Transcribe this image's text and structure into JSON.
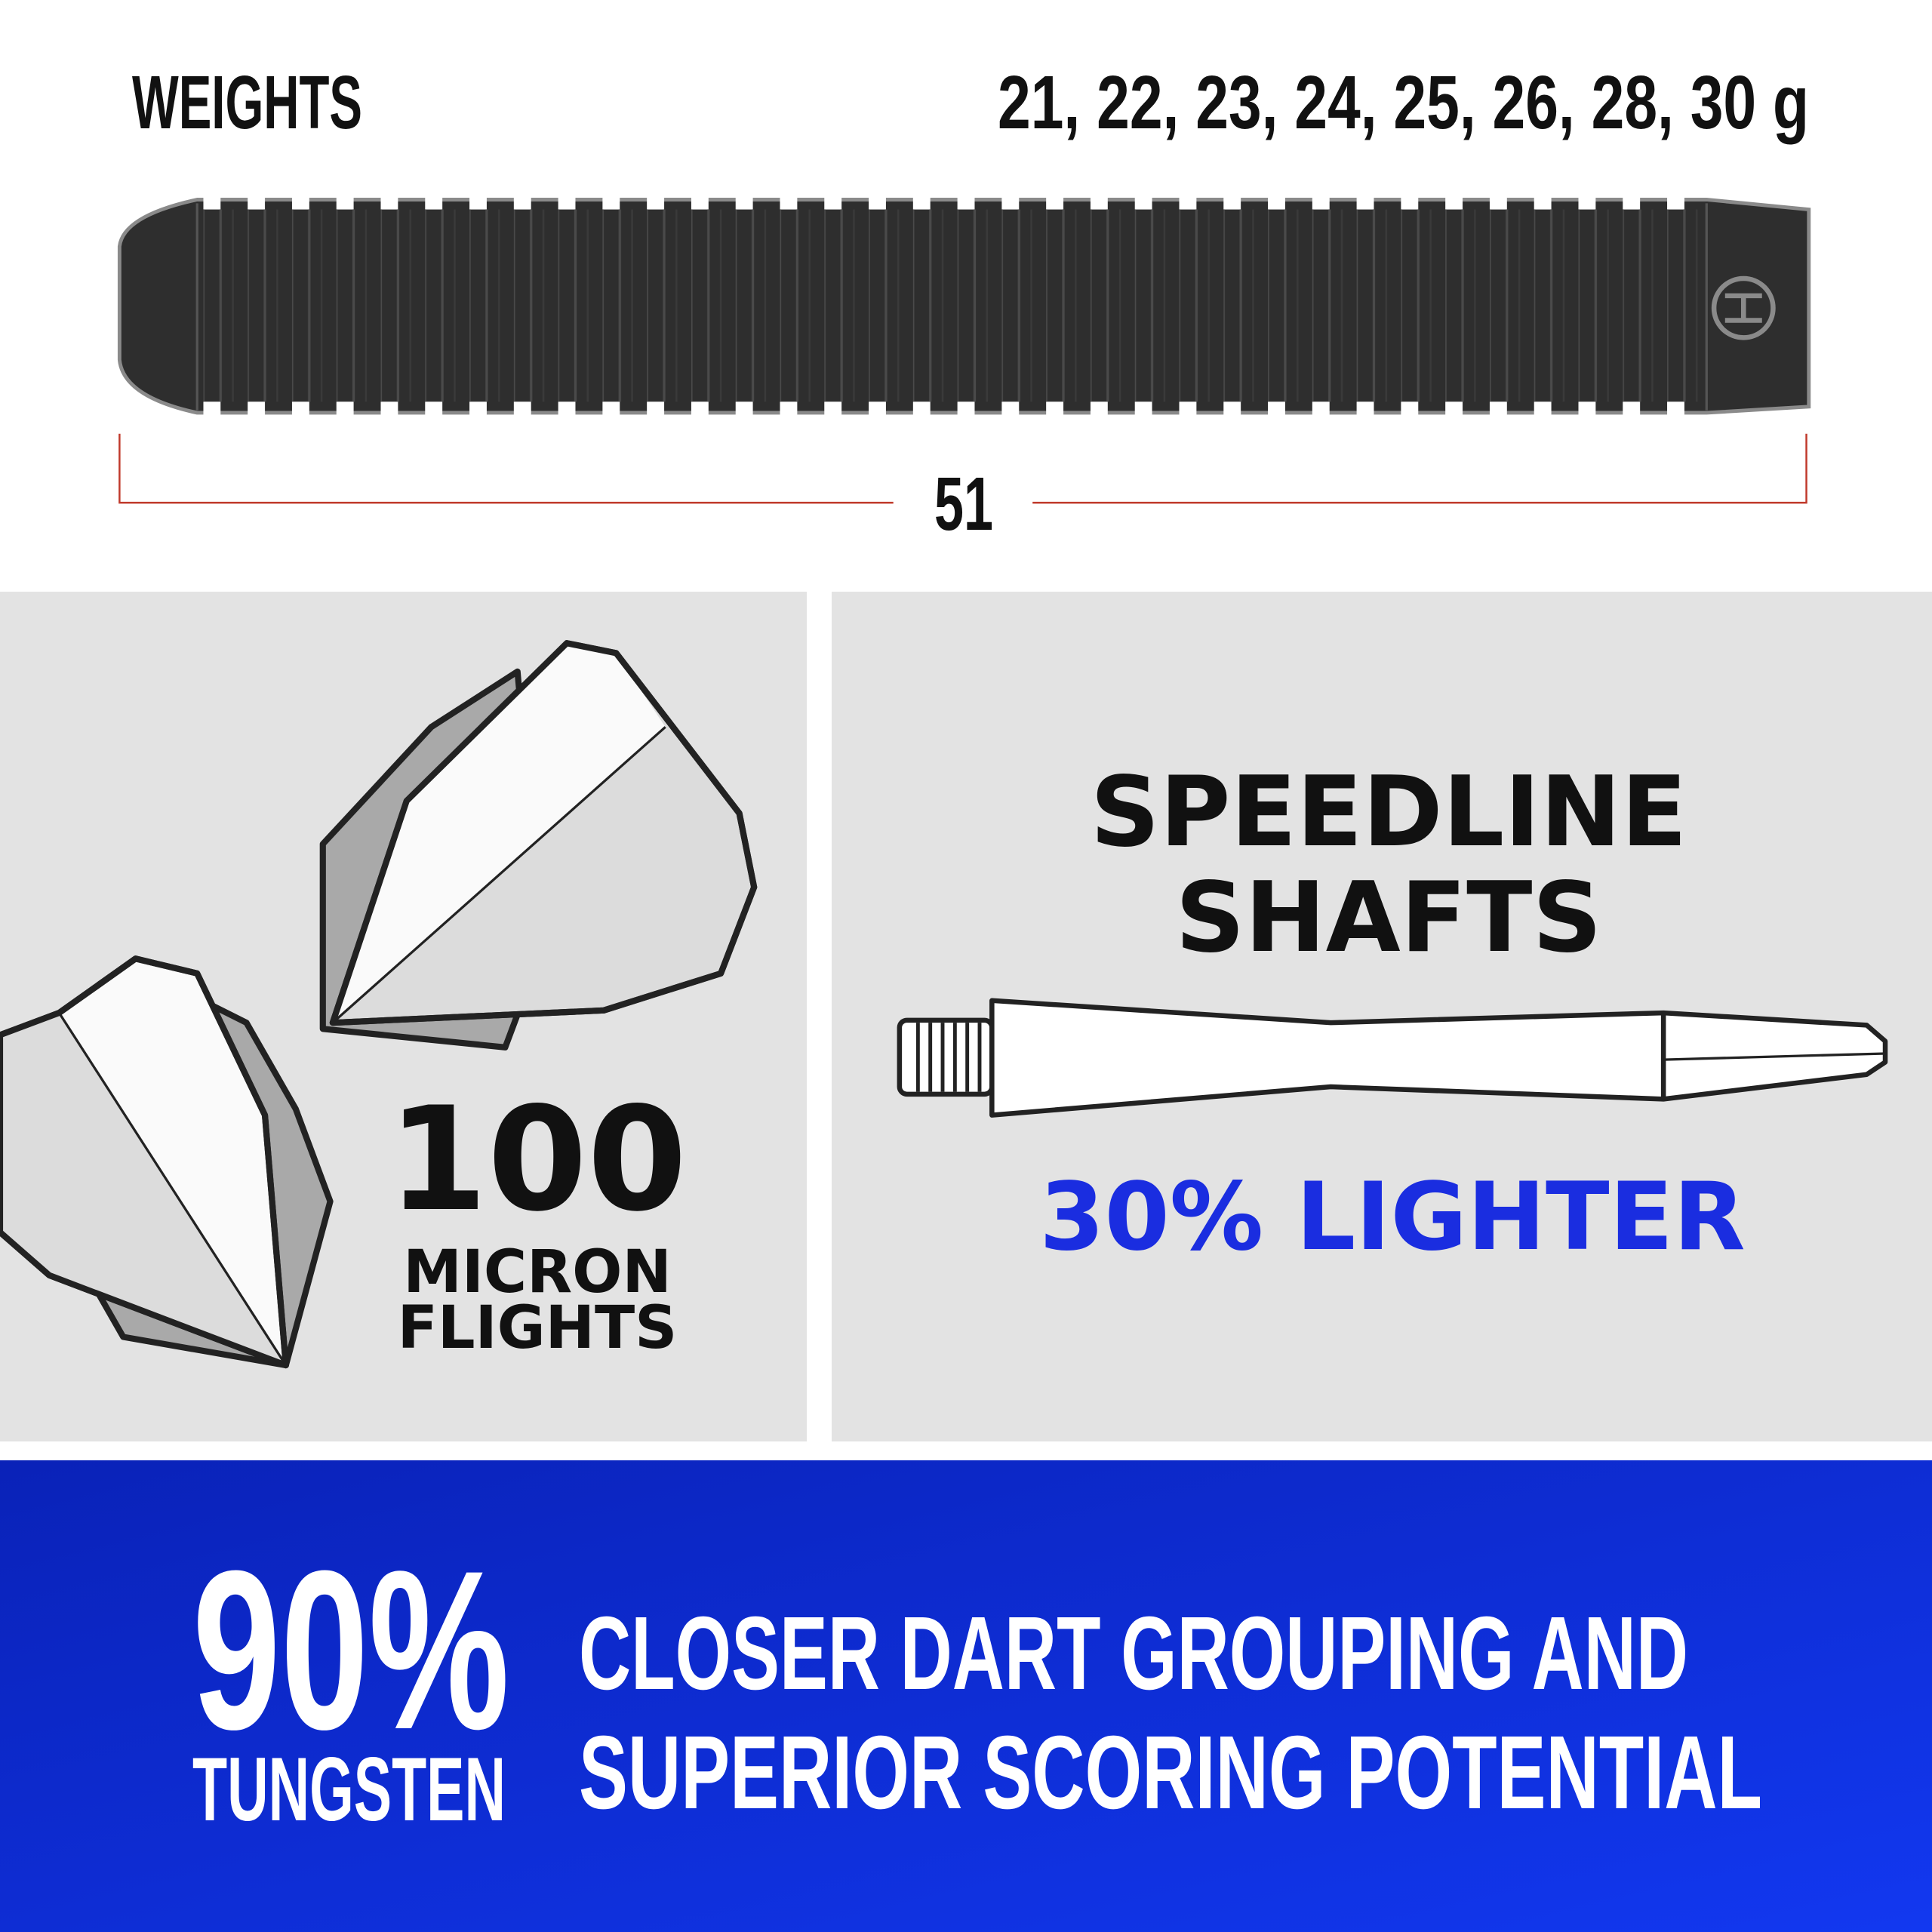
{
  "barrel": {
    "weights_label": "WEIGHTS",
    "weights": "21, 22, 23, 24, 25, 26, 28, 30 g",
    "length": "51"
  },
  "flights": {
    "number": "100",
    "line1": "MICRON",
    "line2": "FLIGHTS"
  },
  "shafts": {
    "title": [
      "SPEEDLINE",
      "SHAFTS"
    ],
    "claim": "30% LIGHTER"
  },
  "banner": {
    "stat": "90%",
    "stat_label": "TUNGSTEN",
    "lines": [
      "CLOSER DART GROUPING AND",
      "SUPERIOR SCORING POTENTIAL"
    ]
  }
}
